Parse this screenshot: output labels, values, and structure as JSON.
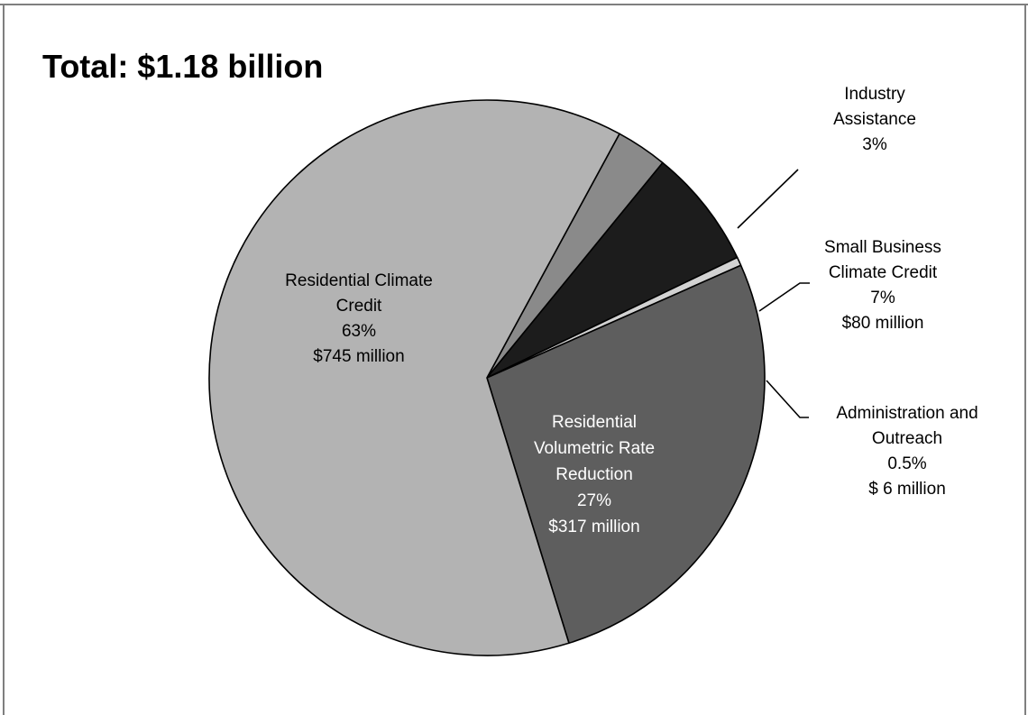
{
  "chart_data": {
    "type": "pie",
    "title": "Total: $1.18 billion",
    "slices": [
      {
        "key": "industry",
        "label_lines": [
          "Industry",
          "Assistance",
          "3%"
        ],
        "value": 3,
        "color": "#8a8a8a"
      },
      {
        "key": "small-business",
        "label_lines": [
          "Small Business",
          "Climate Credit",
          "7%",
          "$80 million"
        ],
        "value": 7,
        "color": "#1c1c1c"
      },
      {
        "key": "admin",
        "label_lines": [
          "Administration and",
          "Outreach",
          "0.5%",
          "$ 6 million"
        ],
        "value": 0.5,
        "color": "#d2d2d2"
      },
      {
        "key": "volumetric",
        "label_lines": [
          "Residential",
          "Volumetric Rate",
          "Reduction",
          "27%",
          "$317 million"
        ],
        "value": 27,
        "color": "#5e5e5e"
      },
      {
        "key": "residential-credit",
        "label_lines": [
          "Residential Climate",
          "Credit",
          "63%",
          "$745 million"
        ],
        "value": 63,
        "color": "#b3b3b3"
      }
    ]
  }
}
